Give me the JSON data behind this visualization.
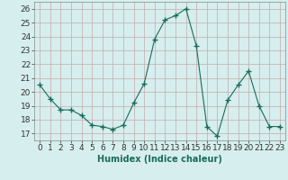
{
  "x": [
    0,
    1,
    2,
    3,
    4,
    5,
    6,
    7,
    8,
    9,
    10,
    11,
    12,
    13,
    14,
    15,
    16,
    17,
    18,
    19,
    20,
    21,
    22,
    23
  ],
  "y": [
    20.5,
    19.5,
    18.7,
    18.7,
    18.3,
    17.6,
    17.5,
    17.3,
    17.6,
    19.2,
    20.6,
    23.8,
    25.2,
    25.5,
    26.0,
    23.3,
    17.5,
    16.8,
    19.4,
    20.5,
    21.5,
    19.0,
    17.5,
    17.5
  ],
  "line_color": "#1a6b5a",
  "marker": "+",
  "marker_size": 4,
  "bg_color": "#d6eeee",
  "grid_color": "#c4aaaa",
  "xlabel": "Humidex (Indice chaleur)",
  "xlim": [
    -0.5,
    23.5
  ],
  "ylim": [
    16.5,
    26.5
  ],
  "yticks": [
    17,
    18,
    19,
    20,
    21,
    22,
    23,
    24,
    25,
    26
  ],
  "xticks": [
    0,
    1,
    2,
    3,
    4,
    5,
    6,
    7,
    8,
    9,
    10,
    11,
    12,
    13,
    14,
    15,
    16,
    17,
    18,
    19,
    20,
    21,
    22,
    23
  ],
  "label_fontsize": 7,
  "tick_fontsize": 6.5
}
